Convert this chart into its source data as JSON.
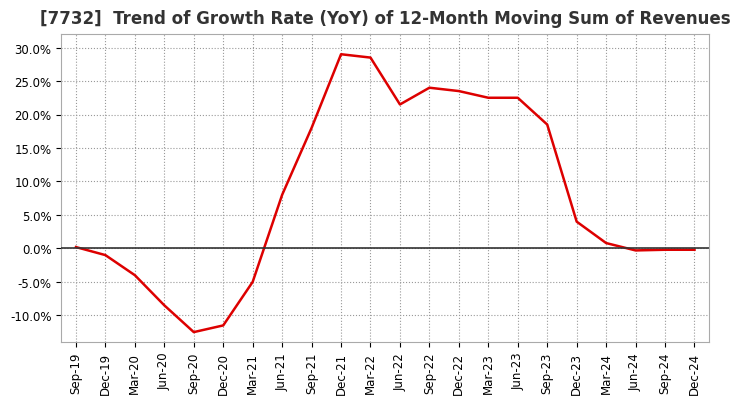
{
  "title": "[7732]  Trend of Growth Rate (YoY) of 12-Month Moving Sum of Revenues",
  "x_labels": [
    "Sep-19",
    "Dec-19",
    "Mar-20",
    "Jun-20",
    "Sep-20",
    "Dec-20",
    "Mar-21",
    "Jun-21",
    "Sep-21",
    "Dec-21",
    "Mar-22",
    "Jun-22",
    "Sep-22",
    "Dec-22",
    "Mar-23",
    "Jun-23",
    "Sep-23",
    "Dec-23",
    "Mar-24",
    "Jun-24",
    "Sep-24",
    "Dec-24"
  ],
  "x_values": [
    0,
    1,
    2,
    3,
    4,
    5,
    6,
    7,
    8,
    9,
    10,
    11,
    12,
    13,
    14,
    15,
    16,
    17,
    18,
    19,
    20,
    21
  ],
  "y_values": [
    0.002,
    -0.01,
    -0.04,
    -0.085,
    -0.125,
    -0.115,
    -0.05,
    0.08,
    0.18,
    0.29,
    0.285,
    0.215,
    0.24,
    0.235,
    0.225,
    0.225,
    0.185,
    0.04,
    0.008,
    -0.003,
    -0.002,
    -0.002
  ],
  "line_color": "#dd0000",
  "line_width": 1.8,
  "ylim": [
    -0.14,
    0.32
  ],
  "yticks": [
    -0.1,
    -0.05,
    0.0,
    0.05,
    0.1,
    0.15,
    0.2,
    0.25,
    0.3
  ],
  "bg_color": "#ffffff",
  "grid_color": "#999999",
  "title_fontsize": 12,
  "tick_fontsize": 8.5,
  "zero_line_color": "#333333",
  "title_color": "#333333"
}
